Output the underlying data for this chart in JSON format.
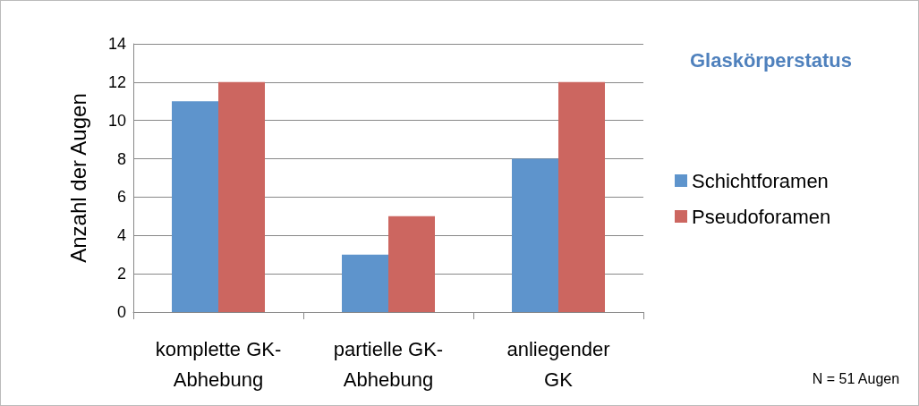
{
  "chart_data": {
    "type": "bar",
    "title": "Glaskörperstatus",
    "ylabel": "Anzahl der Augen",
    "categories": [
      "komplette GK-\nAbhebung",
      "partielle GK-\nAbhebung",
      "anliegender\nGK"
    ],
    "series": [
      {
        "name": "Schichtforamen",
        "color": "#5e94cc",
        "values": [
          11,
          3,
          8
        ]
      },
      {
        "name": "Pseudoforamen",
        "color": "#cc6660",
        "values": [
          12,
          5,
          12
        ]
      }
    ],
    "ylim": [
      0,
      14
    ],
    "yticks": [
      0,
      2,
      4,
      6,
      8,
      10,
      12,
      14
    ],
    "grid": "y",
    "legend": "right",
    "annotations": [
      "N = 51 Augen"
    ]
  }
}
